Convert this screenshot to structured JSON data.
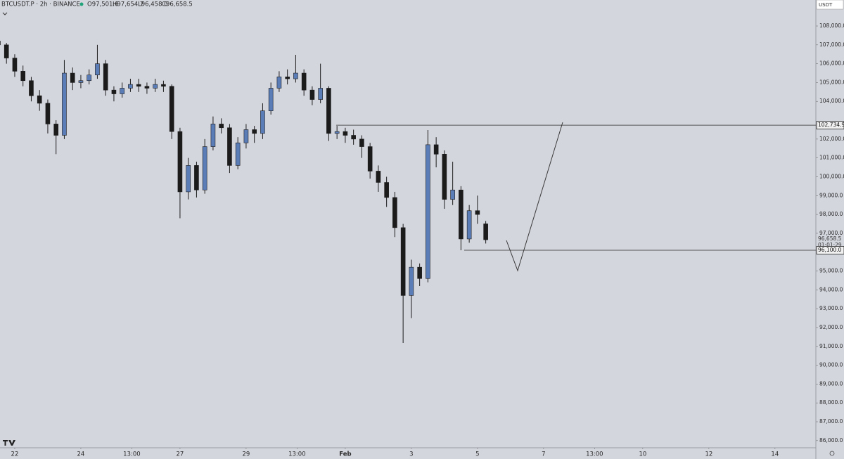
{
  "chart_data": {
    "type": "candlestick",
    "symbol": "BTCUSDT.P · 2h · BINANCE",
    "ohlc_text": [
      "O97,501.6",
      "H97,654.7",
      "L96,458.0",
      "C96,658.5"
    ],
    "currency": "USDT",
    "x": [
      -12,
      -6,
      0,
      6,
      12,
      18,
      24,
      30,
      36,
      42,
      48,
      54,
      60,
      66,
      72,
      78,
      84,
      90,
      96,
      102,
      108,
      114,
      120,
      126,
      132,
      138,
      144,
      150,
      156,
      162,
      168,
      174,
      180,
      186,
      192,
      198,
      204,
      210,
      216,
      222,
      228,
      234,
      240,
      246,
      252,
      258,
      264,
      270,
      276,
      282,
      288,
      294,
      300,
      306,
      312,
      318,
      324,
      330,
      336,
      342
    ],
    "open": [
      107200,
      107000,
      106300,
      105600,
      105100,
      104300,
      103900,
      102800,
      102200,
      105500,
      105000,
      105100,
      105400,
      106000,
      104600,
      104400,
      104700,
      104900,
      104800,
      104700,
      104900,
      104800,
      102400,
      99200,
      100600,
      99300,
      101600,
      102800,
      102600,
      100600,
      101800,
      102500,
      102300,
      103500,
      104700,
      105300,
      105200,
      105500,
      104600,
      104100,
      104700,
      102300,
      102400,
      102200,
      102000,
      101600,
      100300,
      99700,
      98900,
      97300,
      93700,
      95200,
      94600,
      101700,
      101200,
      98800,
      99300,
      96700,
      98200,
      97501.6
    ],
    "high": [
      107400,
      107100,
      106500,
      105900,
      105300,
      104600,
      104100,
      103000,
      106200,
      105800,
      105400,
      105700,
      107000,
      106200,
      104800,
      105000,
      105200,
      105200,
      105000,
      105200,
      105100,
      104900,
      102600,
      101000,
      100800,
      102000,
      103200,
      103100,
      102800,
      102100,
      102800,
      102700,
      103900,
      105000,
      105600,
      105700,
      106470,
      105700,
      104800,
      106000,
      104800,
      102700,
      102600,
      102500,
      102200,
      101800,
      100600,
      100000,
      99200,
      97500,
      95600,
      95400,
      102480,
      102100,
      101400,
      100800,
      99500,
      98500,
      99000,
      97654.7
    ],
    "low": [
      106700,
      106000,
      105300,
      104800,
      104000,
      103500,
      102300,
      101200,
      102000,
      104600,
      104700,
      104900,
      105200,
      104300,
      104000,
      104200,
      104500,
      104500,
      104400,
      104500,
      104500,
      102000,
      97800,
      98800,
      98900,
      99100,
      101400,
      102300,
      100200,
      100400,
      101500,
      101800,
      102000,
      103300,
      104500,
      104900,
      105000,
      104300,
      103800,
      103900,
      101900,
      102000,
      101800,
      101700,
      101000,
      99900,
      99200,
      98400,
      96800,
      91180,
      92500,
      94200,
      94400,
      100500,
      98300,
      98500,
      96100,
      96500,
      97500,
      96458.0
    ],
    "close": [
      107000,
      106300,
      105600,
      105100,
      104300,
      103900,
      102800,
      102200,
      105500,
      105000,
      105100,
      105400,
      106000,
      104600,
      104400,
      104700,
      104900,
      104800,
      104700,
      104900,
      104800,
      102400,
      99200,
      100600,
      99300,
      101600,
      102800,
      102600,
      100600,
      101800,
      102500,
      102300,
      103500,
      104700,
      105300,
      105200,
      105500,
      104600,
      104100,
      104700,
      102300,
      102400,
      102200,
      102000,
      101600,
      100300,
      99700,
      98900,
      97300,
      93700,
      95200,
      94600,
      101700,
      101200,
      98800,
      99300,
      96700,
      98200,
      98000,
      96658.5
    ],
    "up_color": "#5a7db8",
    "down_color": "#1b1b1b",
    "xlim": [
      -10.7,
      581.7
    ],
    "xticks": [
      {
        "value": 0,
        "label": "22"
      },
      {
        "value": 48,
        "label": "24"
      },
      {
        "value": 85,
        "label": "13:00"
      },
      {
        "value": 120,
        "label": "27"
      },
      {
        "value": 168,
        "label": "29"
      },
      {
        "value": 205,
        "label": "13:00"
      },
      {
        "value": 240,
        "label": "Feb"
      },
      {
        "value": 288,
        "label": "3"
      },
      {
        "value": 336,
        "label": "5"
      },
      {
        "value": 384,
        "label": "7"
      },
      {
        "value": 421,
        "label": "13:00"
      },
      {
        "value": 456,
        "label": "10"
      },
      {
        "value": 504,
        "label": "12"
      },
      {
        "value": 552,
        "label": "14"
      }
    ],
    "ylim": [
      85620,
      109380
    ],
    "yticks": [
      {
        "value": 86000,
        "label": "86,000.0"
      },
      {
        "value": 87000,
        "label": "87,000.0"
      },
      {
        "value": 88000,
        "label": "88,000.0"
      },
      {
        "value": 89000,
        "label": "89,000.0"
      },
      {
        "value": 90000,
        "label": "90,000.0"
      },
      {
        "value": 91000,
        "label": "91,000.0"
      },
      {
        "value": 92000,
        "label": "92,000.0"
      },
      {
        "value": 93000,
        "label": "93,000.0"
      },
      {
        "value": 94000,
        "label": "94,000.0"
      },
      {
        "value": 95000,
        "label": "95,000.0"
      },
      {
        "value": 97000,
        "label": "97,000.0"
      },
      {
        "value": 98000,
        "label": "98,000.0"
      },
      {
        "value": 99000,
        "label": "99,000.0"
      },
      {
        "value": 100000,
        "label": "100,000.0"
      },
      {
        "value": 101000,
        "label": "101,000.0"
      },
      {
        "value": 102000,
        "label": "102,000.0"
      },
      {
        "value": 104000,
        "label": "104,000.0"
      },
      {
        "value": 105000,
        "label": "105,000.0"
      },
      {
        "value": 106000,
        "label": "106,000.0"
      },
      {
        "value": 107000,
        "label": "107,000.0"
      },
      {
        "value": 108000,
        "label": "108,000.0"
      }
    ],
    "levels": [
      {
        "value": 102734.9,
        "label": "102,734.9"
      },
      {
        "value": 96100,
        "label": "96,100.0"
      }
    ],
    "last_price": {
      "value": 96658.5,
      "label": "96,658.5"
    },
    "countdown": "01:01:29"
  }
}
